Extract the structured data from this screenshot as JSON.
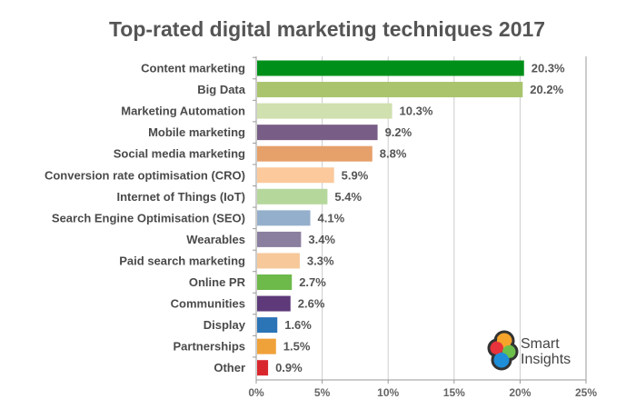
{
  "chart_data": {
    "type": "bar",
    "orientation": "horizontal",
    "title": "Top-rated digital marketing techniques 2017",
    "categories": [
      "Content marketing",
      "Big Data",
      "Marketing Automation",
      "Mobile marketing",
      "Social media marketing",
      "Conversion rate optimisation (CRO)",
      "Internet of Things (IoT)",
      "Search Engine Optimisation (SEO)",
      "Wearables",
      "Paid search marketing",
      "Online PR",
      "Communities",
      "Display",
      "Partnerships",
      "Other"
    ],
    "values": [
      20.3,
      20.2,
      10.3,
      9.2,
      8.8,
      5.9,
      5.4,
      4.1,
      3.4,
      3.3,
      2.7,
      2.6,
      1.6,
      1.5,
      0.9
    ],
    "value_labels": [
      "20.3%",
      "20.2%",
      "10.3%",
      "9.2%",
      "8.8%",
      "5.9%",
      "5.4%",
      "4.1%",
      "3.4%",
      "3.3%",
      "2.7%",
      "2.6%",
      "1.6%",
      "1.5%",
      "0.9%"
    ],
    "colors": [
      "#00901a",
      "#a9c46c",
      "#d0e0ae",
      "#785e86",
      "#e6a06a",
      "#fbc99c",
      "#b5d79b",
      "#94afcc",
      "#8b7fa0",
      "#f6c89a",
      "#6db94a",
      "#5e3a7a",
      "#2b74b6",
      "#f0a23a",
      "#d9272e"
    ],
    "xlim": [
      0,
      25
    ],
    "xticks": [
      0,
      5,
      10,
      15,
      20,
      25
    ],
    "xtick_labels": [
      "0%",
      "5%",
      "10%",
      "15%",
      "20%",
      "25%"
    ],
    "grid": true,
    "xlabel": "",
    "ylabel": ""
  },
  "logo": {
    "text": "Smart Insights"
  }
}
